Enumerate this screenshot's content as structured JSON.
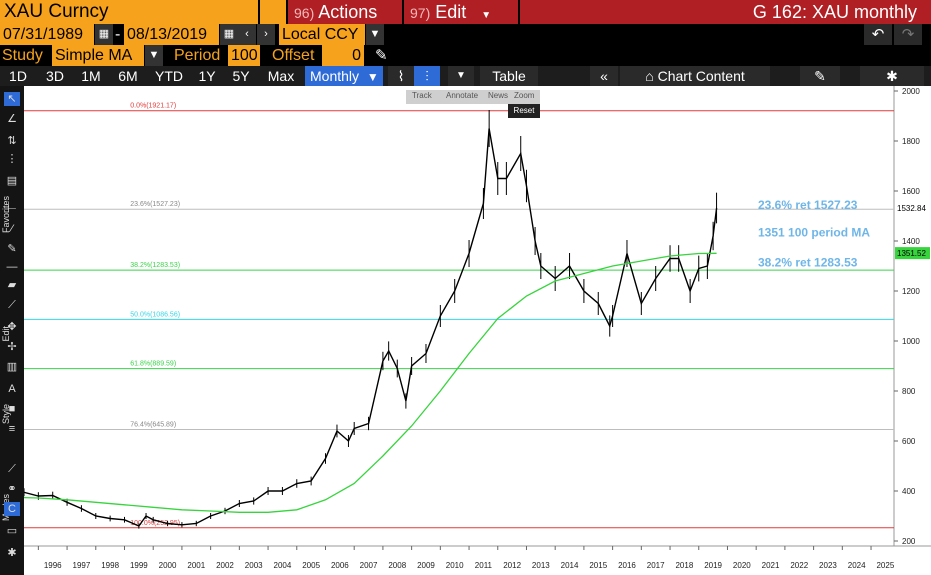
{
  "header": {
    "ticker": "XAU Curncy",
    "actions_num": "96)",
    "actions_label": "Actions",
    "edit_num": "97)",
    "edit_label": "Edit",
    "window_title": "G 162: XAU monthly"
  },
  "range": {
    "start_date": "07/31/1989",
    "end_date": "08/13/2019",
    "currency": "Local CCY",
    "dash": "-"
  },
  "study": {
    "study_label": "Study",
    "study_value": "Simple MA",
    "period_label": "Period",
    "period_value": "100",
    "offset_label": "Offset",
    "offset_value": "0"
  },
  "toolbar": {
    "periods": [
      "1D",
      "3D",
      "1M",
      "6M",
      "YTD",
      "1Y",
      "5Y",
      "Max"
    ],
    "frequency": "Monthly",
    "table_label": "Table",
    "chart_content_label": "Chart Content"
  },
  "float_tools": {
    "track": "Track",
    "annotate": "Annotate",
    "news": "News",
    "zoom": "Zoom",
    "reset": "Reset"
  },
  "side_labels": {
    "favorites": "Favorites",
    "edit": "Edit",
    "style": "Style",
    "modes": "Modes"
  },
  "chart_data": {
    "type": "line",
    "title": "",
    "x_ticks": [
      "1996",
      "1997",
      "1998",
      "1999",
      "2000",
      "2001",
      "2002",
      "2003",
      "2004",
      "2005",
      "2006",
      "2007",
      "2008",
      "2009",
      "2010",
      "2011",
      "2012",
      "2013",
      "2014",
      "2015",
      "2016",
      "2017",
      "2018",
      "2019",
      "2020",
      "2021",
      "2022",
      "2023",
      "2024",
      "2025"
    ],
    "y_ticks": [
      "2000",
      "1800",
      "1600",
      "1400",
      "1200",
      "1000",
      "800",
      "600",
      "400",
      "200"
    ],
    "xlim": [
      1995.5,
      2025.8
    ],
    "ylim": [
      180,
      2020
    ],
    "fib_levels": [
      {
        "label": "0.0%(1921.17)",
        "value": 1921.17,
        "color": "#e23b3b"
      },
      {
        "label": "23.6%(1527.23)",
        "value": 1527.23,
        "color": "#bdbdbd"
      },
      {
        "label": "38.2%(1283.53)",
        "value": 1283.53,
        "color": "#3bd24a"
      },
      {
        "label": "50.0%(1086.56)",
        "value": 1086.56,
        "color": "#38d6e6"
      },
      {
        "label": "61.8%(889.59)",
        "value": 889.59,
        "color": "#3bd24a"
      },
      {
        "label": "76.4%(645.89)",
        "value": 645.89,
        "color": "#bdbdbd"
      },
      {
        "label": "100.0%(252.95)",
        "value": 252.95,
        "color": "#e23b3b"
      }
    ],
    "annotations": [
      {
        "text": "23.6% ret 1527.23",
        "color": "#6fb6e8"
      },
      {
        "text": "1351 100 period MA",
        "color": "#6fb6e8"
      },
      {
        "text": "38.2% ret 1283.53",
        "color": "#6fb6e8"
      }
    ],
    "last_price_tag": "1532.84",
    "ma_tag": "1351.52",
    "series": [
      {
        "name": "XAU",
        "color": "#000000",
        "x": [
          1995.0,
          1995.5,
          1996.0,
          1996.5,
          1997.0,
          1997.5,
          1998.0,
          1998.5,
          1999.0,
          1999.5,
          1999.75,
          2000.0,
          2000.5,
          2001.0,
          2001.5,
          2002.0,
          2002.5,
          2003.0,
          2003.5,
          2004.0,
          2004.5,
          2005.0,
          2005.5,
          2006.0,
          2006.4,
          2006.8,
          2007.0,
          2007.5,
          2008.0,
          2008.2,
          2008.5,
          2008.8,
          2009.0,
          2009.5,
          2010.0,
          2010.5,
          2011.0,
          2011.5,
          2011.7,
          2012.0,
          2012.3,
          2012.8,
          2013.0,
          2013.3,
          2013.5,
          2014.0,
          2014.5,
          2015.0,
          2015.5,
          2015.9,
          2016.0,
          2016.5,
          2017.0,
          2017.5,
          2018.0,
          2018.3,
          2018.7,
          2019.0,
          2019.3,
          2019.5,
          2019.62
        ],
        "values": [
          390,
          395,
          380,
          382,
          355,
          330,
          300,
          290,
          285,
          260,
          300,
          285,
          270,
          265,
          270,
          300,
          320,
          350,
          360,
          400,
          400,
          430,
          440,
          530,
          640,
          600,
          650,
          670,
          920,
          960,
          890,
          760,
          900,
          950,
          1100,
          1200,
          1350,
          1550,
          1850,
          1650,
          1650,
          1750,
          1620,
          1400,
          1300,
          1250,
          1300,
          1200,
          1150,
          1060,
          1100,
          1350,
          1150,
          1250,
          1330,
          1330,
          1200,
          1290,
          1300,
          1420,
          1532
        ]
      },
      {
        "name": "100 period MA",
        "color": "#37d43d",
        "x": [
          1995.0,
          1996.0,
          1997.0,
          1998.0,
          1999.0,
          2000.0,
          2001.0,
          2002.0,
          2003.0,
          2004.0,
          2005.0,
          2006.0,
          2007.0,
          2008.0,
          2009.0,
          2010.0,
          2011.0,
          2012.0,
          2013.0,
          2014.0,
          2015.0,
          2016.0,
          2017.0,
          2018.0,
          2019.0,
          2019.62
        ],
        "values": [
          375,
          372,
          365,
          355,
          345,
          335,
          325,
          320,
          315,
          315,
          325,
          365,
          430,
          540,
          660,
          800,
          950,
          1090,
          1180,
          1240,
          1270,
          1300,
          1320,
          1340,
          1350,
          1351
        ]
      }
    ]
  }
}
